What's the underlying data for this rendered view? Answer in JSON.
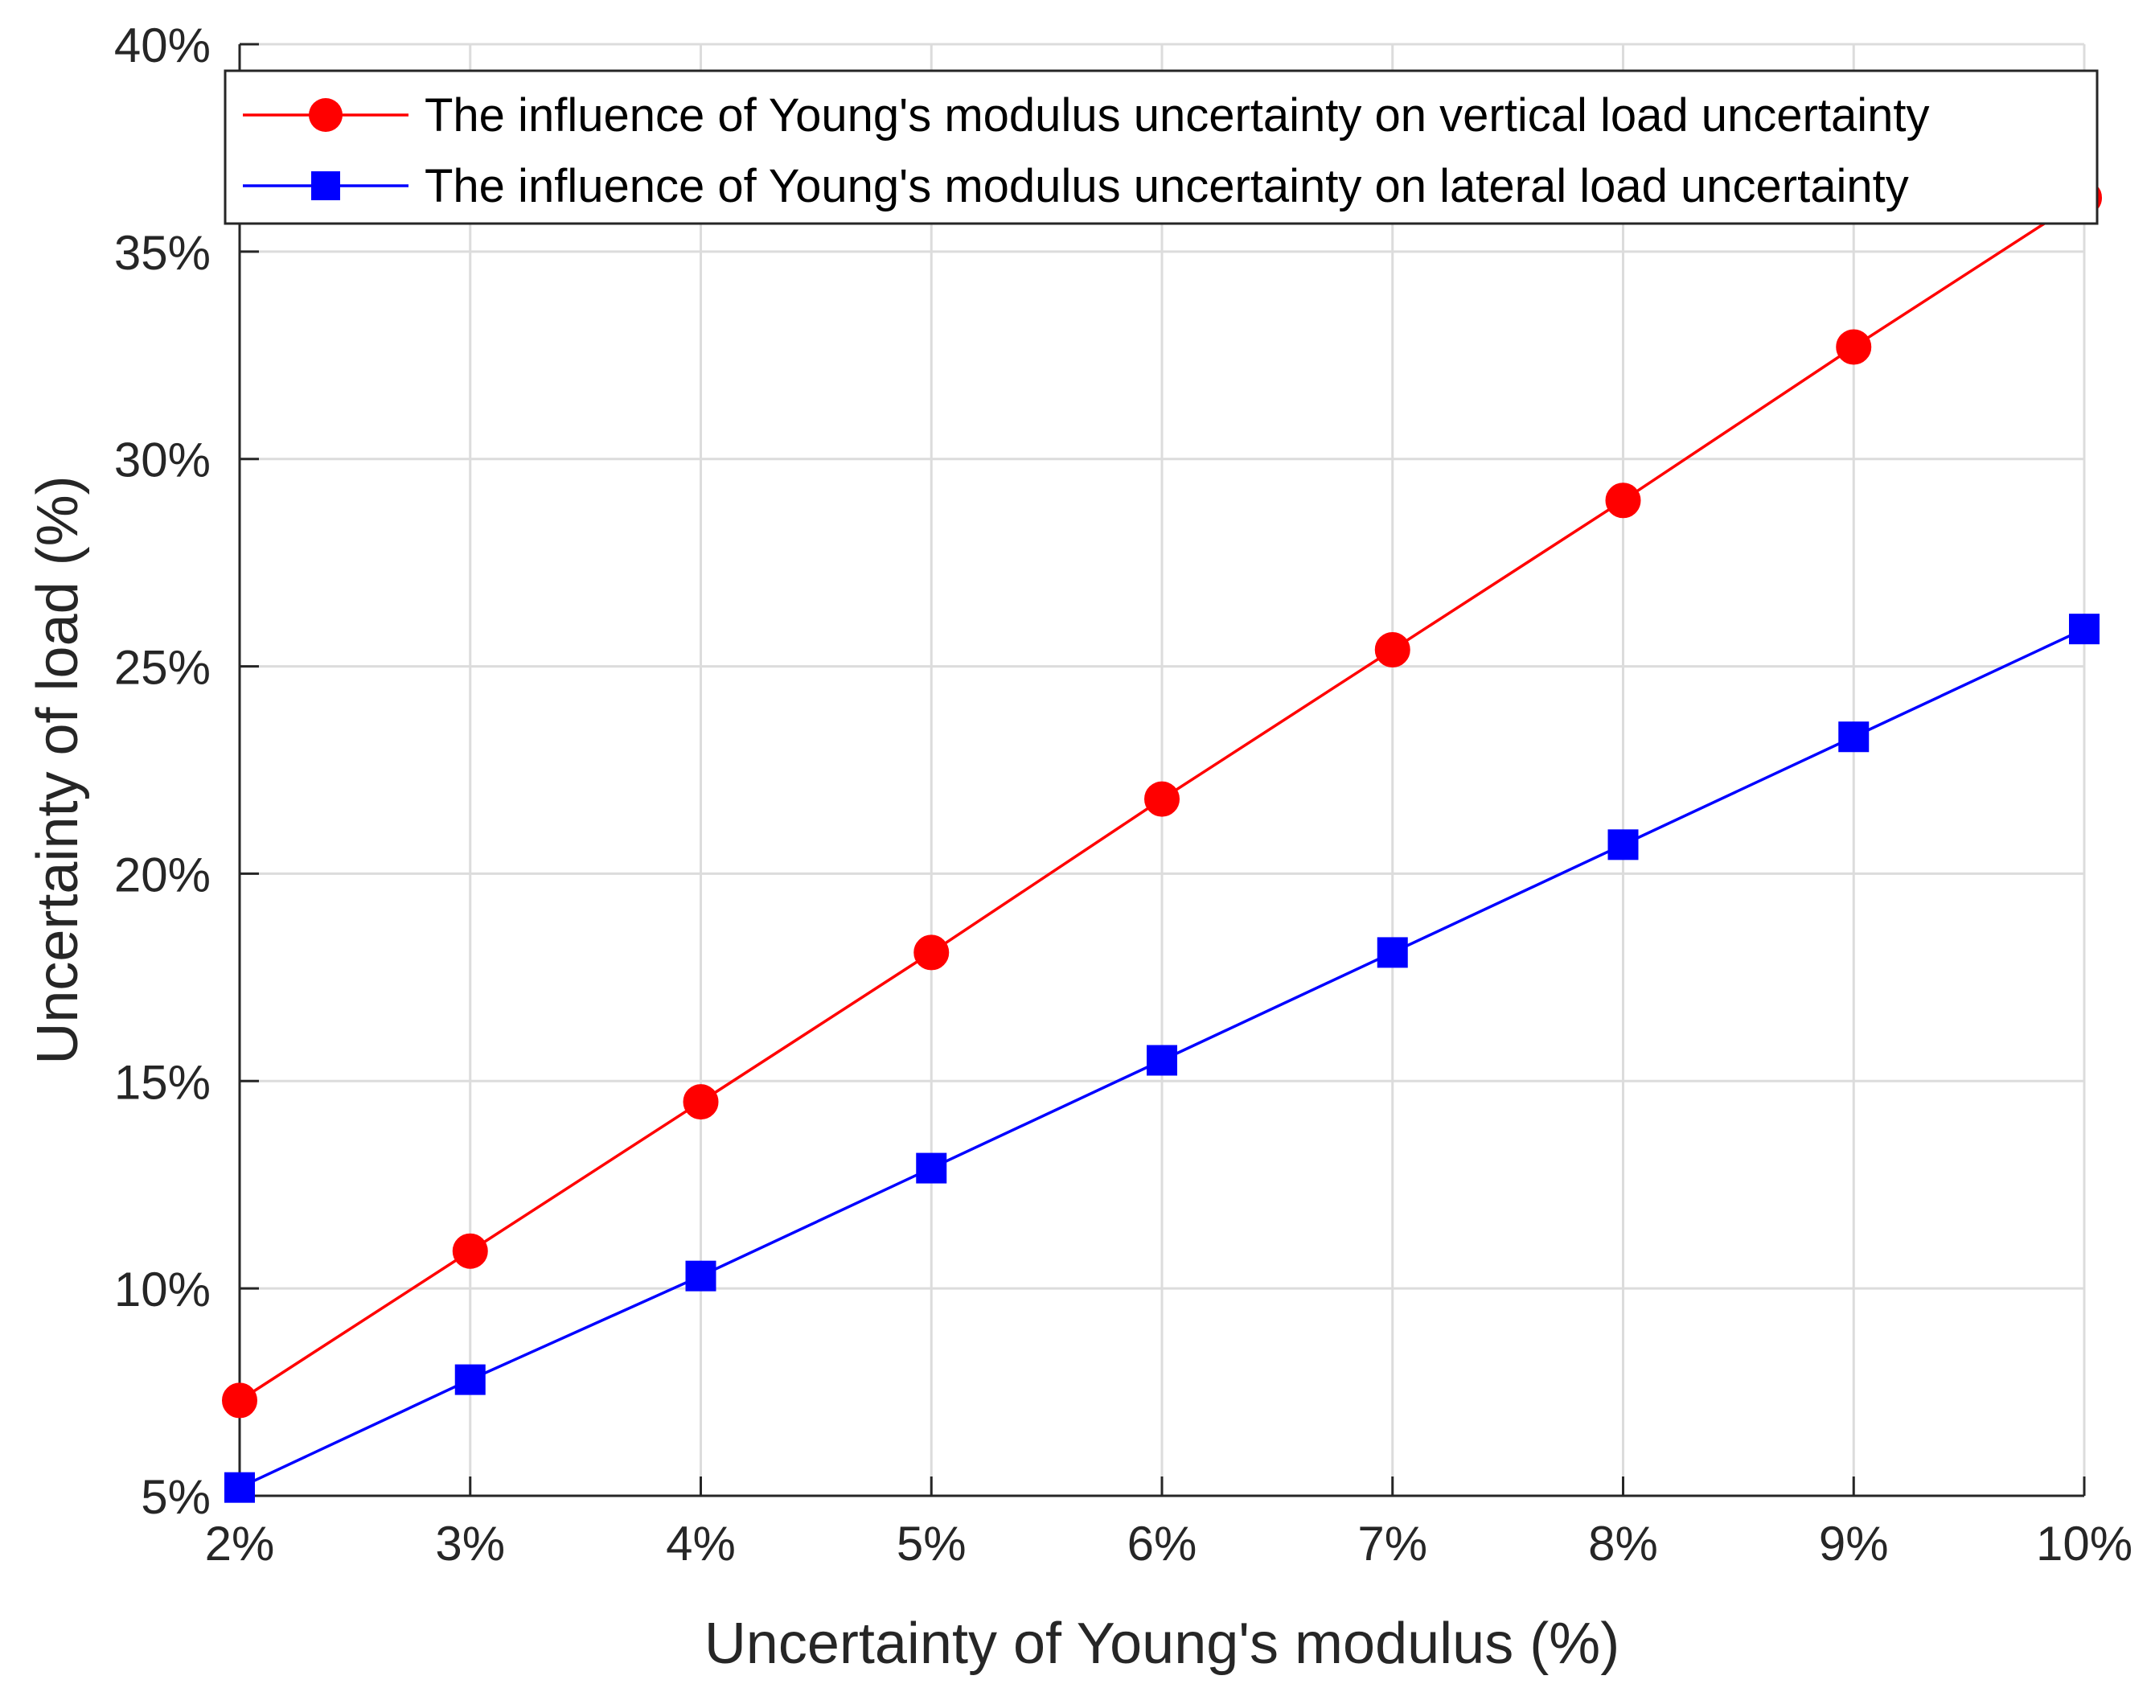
{
  "chart_data": {
    "type": "line",
    "title": "",
    "xlabel": "Uncertainty of Young's modulus (%)",
    "ylabel": "Uncertainty of load (%)",
    "x": [
      2,
      3,
      4,
      5,
      6,
      7,
      8,
      9,
      10
    ],
    "x_tick_labels": [
      "2%",
      "3%",
      "4%",
      "5%",
      "6%",
      "7%",
      "8%",
      "9%",
      "10%"
    ],
    "y_tick_values": [
      5,
      10,
      15,
      20,
      25,
      30,
      35,
      40
    ],
    "y_tick_labels": [
      "5%",
      "10%",
      "15%",
      "20%",
      "25%",
      "30%",
      "35%",
      "40%"
    ],
    "xlim": [
      2,
      10
    ],
    "ylim": [
      5,
      40
    ],
    "grid": true,
    "legend_position": "top",
    "series": [
      {
        "name": "The influence of Young's modulus uncertainty on vertical load uncertainty",
        "color": "#ff0000",
        "marker": "circle",
        "values": [
          7.3,
          10.9,
          14.5,
          18.1,
          21.8,
          25.4,
          29.0,
          32.7,
          36.3
        ]
      },
      {
        "name": "The influence of Young's modulus uncertainty on lateral load uncertainty",
        "color": "#0000ff",
        "marker": "square",
        "values": [
          5.2,
          7.8,
          10.3,
          12.9,
          15.5,
          18.1,
          20.7,
          23.3,
          25.9
        ]
      }
    ]
  }
}
